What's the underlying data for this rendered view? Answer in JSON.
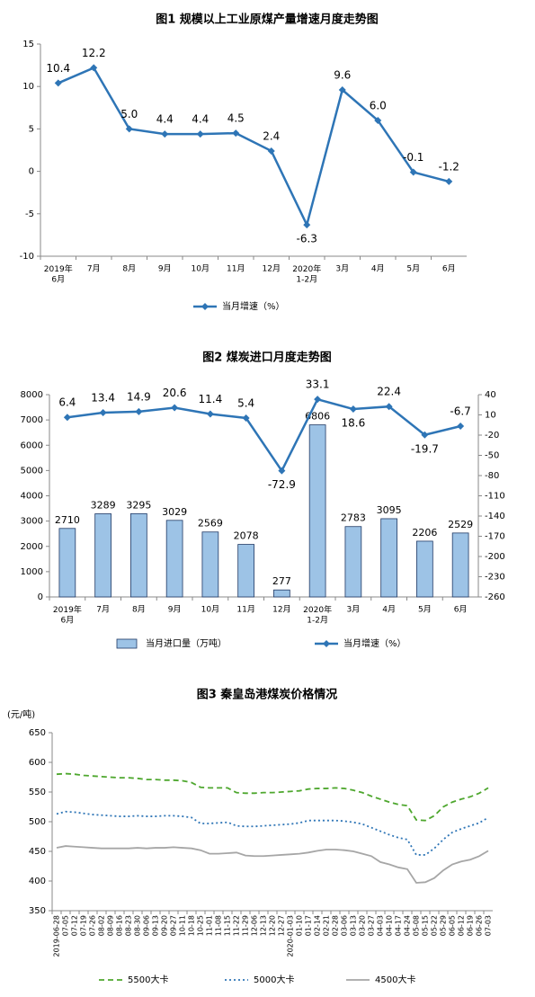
{
  "chart_data": [
    {
      "type": "line",
      "title": "图1  规模以上工业原煤产量增速月度走势图",
      "categories": [
        "2019年\n6月",
        "7月",
        "8月",
        "9月",
        "10月",
        "11月",
        "12月",
        "2020年\n1-2月",
        "3月",
        "4月",
        "5月",
        "6月"
      ],
      "series": [
        {
          "name": "当月增速（%）",
          "color": "#2e75b6",
          "marker": "diamond",
          "data_labels": true,
          "values": [
            10.4,
            12.2,
            5.0,
            4.4,
            4.4,
            4.5,
            2.4,
            -6.3,
            9.6,
            6.0,
            -0.1,
            -1.2
          ],
          "value_labels": [
            "10.4",
            "12.2",
            "5.0",
            "4.4",
            "4.4",
            "4.5",
            "2.4",
            "-6.3",
            "9.6",
            "6.0",
            "-0.1",
            "-1.2"
          ]
        }
      ],
      "ylim": [
        -10,
        15
      ],
      "yticks": [
        -10,
        -5,
        0,
        5,
        10,
        15
      ],
      "grid": false
    },
    {
      "type": "combo",
      "title": "图2  煤炭进口月度走势图",
      "categories": [
        "2019年\n6月",
        "7月",
        "8月",
        "9月",
        "10月",
        "11月",
        "12月",
        "2020年\n1-2月",
        "3月",
        "4月",
        "5月",
        "6月"
      ],
      "series": [
        {
          "name": "当月进口量（万吨）",
          "type": "bar",
          "color": "#9dc3e6",
          "edgecolor": "#1f3864",
          "data_labels": true,
          "values": [
            2710,
            3289,
            3295,
            3029,
            2569,
            2078,
            277,
            6806,
            2783,
            3095,
            2206,
            2529
          ]
        },
        {
          "name": "当月增速（%）",
          "type": "line",
          "axis": "y2",
          "color": "#2e75b6",
          "marker": "diamond",
          "data_labels": true,
          "values": [
            6.4,
            13.4,
            14.9,
            20.6,
            11.4,
            5.4,
            -72.9,
            33.1,
            18.6,
            22.4,
            -19.7,
            -6.7
          ]
        }
      ],
      "ylim": [
        0,
        8000
      ],
      "yticks": [
        0,
        1000,
        2000,
        3000,
        4000,
        5000,
        6000,
        7000,
        8000
      ],
      "y2lim": [
        -260,
        40
      ],
      "y2ticks": [
        -260,
        -230,
        -200,
        -170,
        -140,
        -110,
        -80,
        -50,
        -20,
        10,
        40
      ],
      "grid": false
    },
    {
      "type": "line",
      "title": "图3    秦皇岛港煤炭价格情况",
      "ylabel": "(元/吨)",
      "categories": [
        "2019-06-28",
        "07-05",
        "07-12",
        "07-19",
        "07-26",
        "08-02",
        "08-09",
        "08-16",
        "08-23",
        "08-30",
        "09-06",
        "09-13",
        "09-20",
        "09-27",
        "10-11",
        "10-18",
        "10-25",
        "11-01",
        "11-08",
        "11-15",
        "11-22",
        "11-29",
        "12-06",
        "12-13",
        "12-20",
        "12-27",
        "2020-01-03",
        "01-10",
        "01-17",
        "02-14",
        "02-21",
        "02-28",
        "03-06",
        "03-13",
        "03-20",
        "03-27",
        "04-03",
        "04-10",
        "04-17",
        "04-24",
        "05-08",
        "05-15",
        "05-22",
        "05-29",
        "06-05",
        "06-12",
        "06-19",
        "06-26",
        "07-03"
      ],
      "series": [
        {
          "name": "5500大卡",
          "color": "#4ea72e",
          "dash": "dashed",
          "values": [
            580,
            581,
            580,
            578,
            577,
            576,
            575,
            574,
            574,
            573,
            571,
            571,
            570,
            570,
            569,
            566,
            558,
            557,
            557,
            557,
            549,
            548,
            548,
            549,
            549,
            550,
            551,
            552,
            555,
            556,
            556,
            557,
            556,
            553,
            549,
            543,
            538,
            533,
            529,
            527,
            503,
            502,
            510,
            525,
            533,
            538,
            542,
            548,
            557
          ]
        },
        {
          "name": "5000大卡",
          "color": "#2e75b6",
          "dash": "dotted",
          "values": [
            513,
            517,
            516,
            514,
            512,
            511,
            510,
            509,
            509,
            510,
            509,
            509,
            510,
            510,
            509,
            507,
            497,
            497,
            498,
            499,
            493,
            492,
            492,
            493,
            494,
            495,
            496,
            498,
            502,
            502,
            502,
            502,
            501,
            499,
            496,
            490,
            484,
            478,
            473,
            470,
            444,
            444,
            455,
            470,
            482,
            488,
            493,
            498,
            507
          ]
        },
        {
          "name": "4500大卡",
          "color": "#a6a6a6",
          "dash": "solid",
          "values": [
            456,
            459,
            458,
            457,
            456,
            455,
            455,
            455,
            455,
            456,
            455,
            456,
            456,
            457,
            456,
            455,
            452,
            446,
            446,
            447,
            448,
            443,
            442,
            442,
            443,
            444,
            445,
            446,
            448,
            451,
            453,
            453,
            452,
            450,
            446,
            442,
            432,
            428,
            423,
            420,
            397,
            398,
            405,
            418,
            428,
            433,
            436,
            442,
            451
          ]
        }
      ],
      "ylim": [
        350,
        650
      ],
      "yticks": [
        350,
        400,
        450,
        500,
        550,
        600,
        650
      ],
      "grid": false
    }
  ]
}
